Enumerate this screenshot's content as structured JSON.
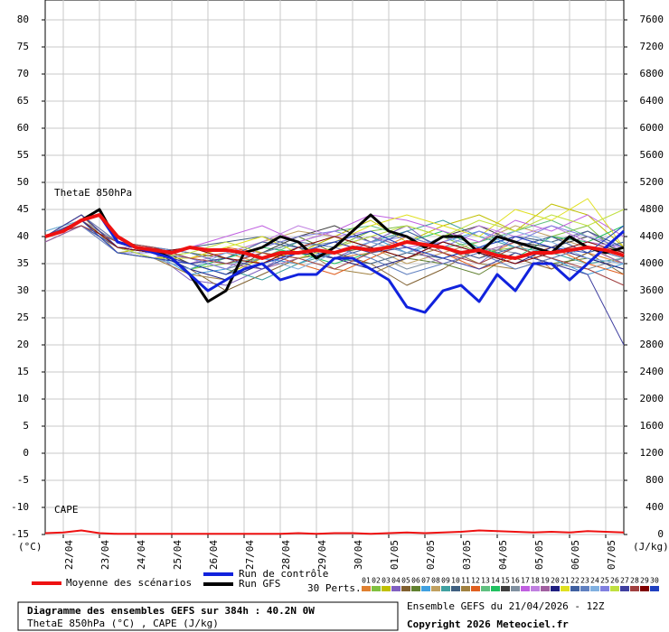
{
  "chart_data": {
    "type": "line",
    "xlim": [
      0,
      384
    ],
    "xticks": [
      {
        "value": 12,
        "label": "22/04"
      },
      {
        "value": 36,
        "label": "23/04"
      },
      {
        "value": 60,
        "label": "24/04"
      },
      {
        "value": 84,
        "label": "25/04"
      },
      {
        "value": 108,
        "label": "26/04"
      },
      {
        "value": 132,
        "label": "27/04"
      },
      {
        "value": 156,
        "label": "28/04"
      },
      {
        "value": 180,
        "label": "29/04"
      },
      {
        "value": 204,
        "label": "30/04"
      },
      {
        "value": 228,
        "label": "01/05"
      },
      {
        "value": 252,
        "label": "02/05"
      },
      {
        "value": 276,
        "label": "03/05"
      },
      {
        "value": 300,
        "label": "04/05"
      },
      {
        "value": 324,
        "label": "05/05"
      },
      {
        "value": 348,
        "label": "06/05"
      },
      {
        "value": 372,
        "label": "07/05"
      }
    ],
    "ylim": [
      -15,
      80
    ],
    "yticks": [
      -15,
      -10,
      -5,
      0,
      5,
      10,
      15,
      20,
      25,
      30,
      35,
      40,
      45,
      50,
      55,
      60,
      65,
      70,
      75,
      80
    ],
    "y2lim": [
      0,
      7600
    ],
    "y2ticks": [
      0,
      400,
      800,
      1200,
      1600,
      2000,
      2400,
      2800,
      3200,
      3600,
      4000,
      4400,
      4800,
      5200,
      5600,
      6000,
      6400,
      6800,
      7200,
      7600
    ],
    "y_label": "(°C)",
    "y2_label": "(J/kg)",
    "annotations": [
      "ThetaE 850hPa",
      "CAPE"
    ],
    "grid": true,
    "x": [
      0,
      12,
      24,
      36,
      48,
      60,
      72,
      84,
      96,
      108,
      120,
      132,
      144,
      156,
      168,
      180,
      192,
      204,
      216,
      228,
      240,
      252,
      264,
      276,
      288,
      300,
      312,
      324,
      336,
      348,
      360,
      372,
      384
    ],
    "series": [
      {
        "name": "Moyenne des scénarios",
        "color": "#ee1111",
        "values": [
          40,
          41,
          43,
          44,
          40,
          38,
          37.5,
          37,
          38,
          37.5,
          37.5,
          37,
          36,
          37,
          37,
          37.5,
          37,
          38,
          37.5,
          38,
          39,
          38.5,
          38,
          37,
          37.5,
          36.5,
          36,
          37,
          37,
          37.5,
          38,
          37.5,
          36.5
        ]
      },
      {
        "name": "Run de contrôle",
        "color": "#1122dd",
        "values": [
          40,
          41,
          43,
          44,
          39,
          38,
          37,
          36,
          33,
          30,
          32,
          34,
          35,
          32,
          33,
          33,
          36,
          36,
          34,
          32,
          27,
          26,
          30,
          31,
          28,
          33,
          30,
          35,
          35,
          32,
          35,
          38,
          41
        ]
      },
      {
        "name": "Run GFS",
        "color": "#000000",
        "values": [
          40,
          41,
          43,
          45,
          39,
          38,
          37.5,
          36,
          33,
          28,
          30,
          37,
          38,
          40,
          39,
          36,
          38,
          41,
          44,
          41,
          40,
          38,
          40,
          40,
          37,
          40,
          39,
          38,
          37,
          40,
          38,
          37,
          38
        ]
      },
      {
        "color": "#ee1111",
        "axis": "y2",
        "values": [
          20,
          30,
          60,
          20,
          10,
          10,
          10,
          10,
          10,
          10,
          10,
          10,
          10,
          10,
          20,
          10,
          20,
          20,
          10,
          20,
          30,
          20,
          30,
          40,
          60,
          50,
          40,
          30,
          40,
          30,
          50,
          40,
          30
        ]
      }
    ],
    "perturbations": {
      "label": "30 Perts.",
      "x": [
        0,
        24,
        48,
        72,
        96,
        120,
        144,
        168,
        192,
        216,
        240,
        264,
        288,
        312,
        336,
        360,
        384
      ],
      "series": [
        {
          "name": "01",
          "color": "#e08030",
          "values": [
            40,
            44,
            38,
            37,
            36,
            37,
            35,
            38,
            36,
            37,
            40,
            38,
            36,
            39,
            34,
            37,
            35
          ]
        },
        {
          "name": "02",
          "color": "#80c040",
          "values": [
            40,
            43,
            38,
            36,
            34,
            35,
            37,
            39,
            38,
            41,
            42,
            40,
            37,
            38,
            40,
            42,
            36
          ]
        },
        {
          "name": "03",
          "color": "#c0c000",
          "values": [
            40,
            42,
            37,
            38,
            35,
            33,
            36,
            37,
            40,
            43,
            39,
            42,
            44,
            41,
            46,
            44,
            38
          ]
        },
        {
          "name": "04",
          "color": "#8060c0",
          "values": [
            40,
            43,
            39,
            37,
            32,
            31,
            34,
            38,
            36,
            39,
            42,
            37,
            35,
            40,
            38,
            41,
            37
          ]
        },
        {
          "name": "05",
          "color": "#806030",
          "values": [
            40,
            44,
            38,
            36,
            34,
            30,
            33,
            36,
            37,
            35,
            31,
            34,
            38,
            36,
            34,
            37,
            33
          ]
        },
        {
          "name": "06",
          "color": "#608030",
          "values": [
            40,
            42,
            39,
            38,
            37,
            36,
            38,
            40,
            37,
            38,
            36,
            35,
            33,
            37,
            35,
            36,
            34
          ]
        },
        {
          "name": "07",
          "color": "#40a0e0",
          "values": [
            41,
            43,
            38,
            37,
            33,
            34,
            36,
            35,
            38,
            40,
            37,
            39,
            41,
            38,
            36,
            33,
            35
          ]
        },
        {
          "name": "08",
          "color": "#c0a060",
          "values": [
            40,
            44,
            37,
            36,
            35,
            37,
            39,
            41,
            40,
            38,
            35,
            37,
            39,
            42,
            40,
            38,
            36
          ]
        },
        {
          "name": "09",
          "color": "#40a0a0",
          "values": [
            40,
            43,
            38,
            38,
            36,
            34,
            32,
            35,
            37,
            39,
            41,
            43,
            40,
            38,
            37,
            35,
            36
          ]
        },
        {
          "name": "10",
          "color": "#406080",
          "values": [
            39,
            42,
            38,
            37,
            38,
            39,
            40,
            38,
            36,
            35,
            37,
            36,
            38,
            40,
            39,
            41,
            38
          ]
        },
        {
          "name": "11",
          "color": "#a08040",
          "values": [
            40,
            43,
            37,
            36,
            33,
            32,
            35,
            38,
            34,
            33,
            36,
            38,
            35,
            34,
            36,
            38,
            35
          ]
        },
        {
          "name": "12",
          "color": "#e06020",
          "values": [
            40,
            44,
            39,
            37,
            36,
            38,
            37,
            35,
            33,
            36,
            39,
            37,
            34,
            36,
            38,
            35,
            33
          ]
        },
        {
          "name": "13",
          "color": "#60c080",
          "values": [
            41,
            43,
            38,
            36,
            37,
            35,
            36,
            39,
            41,
            42,
            40,
            38,
            39,
            41,
            43,
            40,
            37
          ]
        },
        {
          "name": "14",
          "color": "#20c060",
          "values": [
            40,
            42,
            37,
            37,
            34,
            36,
            38,
            37,
            35,
            37,
            39,
            41,
            38,
            36,
            40,
            39,
            42
          ]
        },
        {
          "name": "15",
          "color": "#404040",
          "values": [
            40,
            44,
            38,
            38,
            35,
            33,
            37,
            40,
            42,
            39,
            37,
            40,
            42,
            39,
            38,
            40,
            37
          ]
        },
        {
          "name": "16",
          "color": "#8090a0",
          "values": [
            40,
            43,
            39,
            37,
            36,
            34,
            36,
            38,
            39,
            37,
            34,
            36,
            38,
            37,
            35,
            34,
            36
          ]
        },
        {
          "name": "17",
          "color": "#c060e0",
          "values": [
            40,
            42,
            38,
            36,
            38,
            40,
            42,
            39,
            41,
            44,
            43,
            41,
            39,
            43,
            41,
            44,
            40
          ]
        },
        {
          "name": "18",
          "color": "#c080e0",
          "values": [
            40,
            43,
            37,
            37,
            35,
            37,
            39,
            42,
            40,
            41,
            38,
            39,
            42,
            40,
            42,
            39,
            38
          ]
        },
        {
          "name": "19",
          "color": "#a060a0",
          "values": [
            39,
            42,
            38,
            38,
            37,
            35,
            34,
            36,
            38,
            40,
            38,
            35,
            37,
            39,
            37,
            38,
            35
          ]
        },
        {
          "name": "20",
          "color": "#202080",
          "values": [
            40,
            44,
            38,
            37,
            34,
            32,
            35,
            37,
            36,
            34,
            36,
            39,
            37,
            35,
            38,
            36,
            34
          ]
        },
        {
          "name": "21",
          "color": "#e0e020",
          "values": [
            40,
            43,
            37,
            36,
            36,
            38,
            40,
            37,
            39,
            42,
            44,
            42,
            40,
            45,
            43,
            47,
            38
          ]
        },
        {
          "name": "22",
          "color": "#4060a0",
          "values": [
            40,
            42,
            38,
            37,
            35,
            36,
            39,
            38,
            36,
            38,
            41,
            38,
            36,
            38,
            40,
            37,
            39
          ]
        },
        {
          "name": "23",
          "color": "#6080c0",
          "values": [
            40,
            44,
            39,
            38,
            37,
            35,
            37,
            39,
            38,
            36,
            33,
            35,
            37,
            34,
            36,
            38,
            36
          ]
        },
        {
          "name": "24",
          "color": "#80b0e0",
          "values": [
            41,
            43,
            38,
            36,
            34,
            37,
            36,
            34,
            37,
            39,
            37,
            40,
            38,
            41,
            39,
            36,
            35
          ]
        },
        {
          "name": "25",
          "color": "#8080e0",
          "values": [
            40,
            42,
            37,
            37,
            36,
            34,
            38,
            40,
            41,
            39,
            40,
            38,
            41,
            39,
            42,
            40,
            38
          ]
        },
        {
          "name": "26",
          "color": "#c0e040",
          "values": [
            40,
            43,
            38,
            36,
            37,
            39,
            37,
            36,
            38,
            40,
            42,
            40,
            43,
            41,
            44,
            42,
            45
          ]
        },
        {
          "name": "27",
          "color": "#4040a0",
          "values": [
            40,
            44,
            38,
            37,
            35,
            36,
            34,
            37,
            39,
            37,
            38,
            36,
            34,
            37,
            35,
            33,
            20
          ]
        },
        {
          "name": "28",
          "color": "#a04040",
          "values": [
            40,
            42,
            39,
            38,
            36,
            35,
            37,
            36,
            34,
            37,
            39,
            37,
            35,
            38,
            36,
            34,
            31
          ]
        },
        {
          "name": "29",
          "color": "#800000",
          "values": [
            40,
            43,
            38,
            37,
            38,
            36,
            35,
            38,
            40,
            38,
            36,
            39,
            37,
            35,
            37,
            39,
            37
          ]
        },
        {
          "name": "30",
          "color": "#2040c0",
          "values": [
            40,
            43,
            37,
            36,
            35,
            33,
            35,
            37,
            39,
            41,
            38,
            36,
            38,
            40,
            38,
            37,
            42
          ]
        }
      ]
    }
  },
  "footer": {
    "title": "Diagramme des ensembles GEFS sur 384h : 40.2N 0W",
    "subtitle": "ThetaE 850hPa (°C) , CAPE (J/kg)",
    "run": "Ensemble GEFS du 21/04/2026 - 12Z",
    "copyright": "Copyright 2026 Meteociel.fr"
  }
}
